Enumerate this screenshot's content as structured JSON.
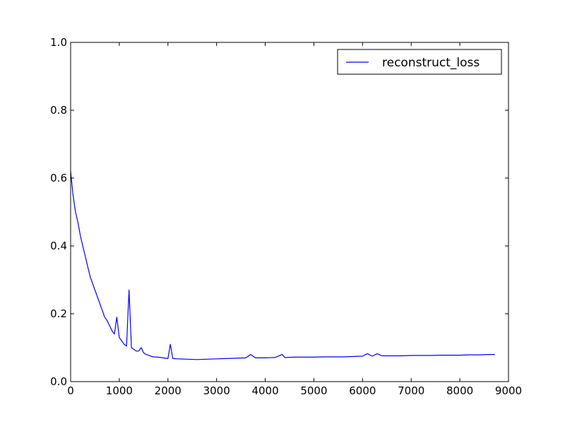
{
  "chart_data": {
    "type": "line",
    "title": "",
    "xlabel": "",
    "ylabel": "",
    "xlim": [
      0,
      9000
    ],
    "ylim": [
      0.0,
      1.0
    ],
    "xticks": [
      0,
      1000,
      2000,
      3000,
      4000,
      5000,
      6000,
      7000,
      8000,
      9000
    ],
    "yticks": [
      0.0,
      0.2,
      0.4,
      0.6,
      0.8,
      1.0
    ],
    "xtick_labels": [
      "0",
      "1000",
      "2000",
      "3000",
      "4000",
      "5000",
      "6000",
      "7000",
      "8000",
      "9000"
    ],
    "ytick_labels": [
      "0.0",
      "0.2",
      "0.4",
      "0.6",
      "0.8",
      "1.0"
    ],
    "grid": false,
    "legend": {
      "position": "top-right",
      "entries": [
        "reconstruct_loss"
      ]
    },
    "series": [
      {
        "name": "reconstruct_loss",
        "color": "#0000ff",
        "x": [
          0,
          50,
          100,
          150,
          200,
          250,
          300,
          350,
          400,
          450,
          500,
          550,
          600,
          650,
          700,
          750,
          800,
          850,
          900,
          950,
          1000,
          1050,
          1100,
          1150,
          1200,
          1250,
          1300,
          1350,
          1400,
          1450,
          1500,
          1550,
          1600,
          1650,
          1700,
          1800,
          1900,
          2000,
          2050,
          2100,
          2200,
          2400,
          2600,
          2800,
          3000,
          3200,
          3400,
          3600,
          3700,
          3800,
          4000,
          4200,
          4350,
          4400,
          4600,
          4800,
          5000,
          5200,
          5400,
          5600,
          5800,
          6000,
          6100,
          6200,
          6300,
          6400,
          6600,
          6800,
          7000,
          7200,
          7400,
          7600,
          7800,
          8000,
          8200,
          8400,
          8600,
          8720
        ],
        "y": [
          0.62,
          0.55,
          0.5,
          0.47,
          0.43,
          0.4,
          0.37,
          0.34,
          0.31,
          0.29,
          0.27,
          0.25,
          0.23,
          0.21,
          0.19,
          0.18,
          0.165,
          0.15,
          0.14,
          0.19,
          0.13,
          0.12,
          0.11,
          0.105,
          0.27,
          0.1,
          0.095,
          0.09,
          0.09,
          0.1,
          0.085,
          0.08,
          0.078,
          0.075,
          0.073,
          0.072,
          0.07,
          0.068,
          0.11,
          0.068,
          0.067,
          0.066,
          0.065,
          0.066,
          0.067,
          0.068,
          0.069,
          0.07,
          0.08,
          0.07,
          0.07,
          0.071,
          0.08,
          0.071,
          0.072,
          0.072,
          0.072,
          0.073,
          0.073,
          0.073,
          0.074,
          0.075,
          0.082,
          0.075,
          0.082,
          0.076,
          0.076,
          0.076,
          0.077,
          0.077,
          0.077,
          0.078,
          0.078,
          0.078,
          0.079,
          0.079,
          0.08,
          0.08
        ]
      }
    ]
  }
}
